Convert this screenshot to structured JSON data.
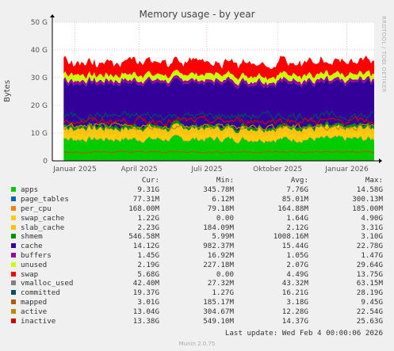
{
  "title": "Memory usage - by year",
  "side_label": "RRDTOOL / TOBI OETIKER",
  "footer": "Munin 2.0.75",
  "last_update": "Last update: Wed Feb  4 00:00:06 2026",
  "legend_headers": {
    "cur": "Cur:",
    "min": "Min:",
    "avg": "Avg:",
    "max": "Max:"
  },
  "chart_data": {
    "type": "area",
    "title": "Memory usage - by year",
    "ylabel": "Bytes",
    "xlabel": "",
    "ylim": [
      0,
      50
    ],
    "y_unit": "G",
    "y_ticks": [
      "0",
      "10 G",
      "20 G",
      "30 G",
      "40 G",
      "50 G"
    ],
    "x_ticks": [
      "Januar 2025",
      "April 2025",
      "Juli 2025",
      "Oktober 2025",
      "Januar 2026"
    ],
    "grid": true,
    "series": [
      {
        "name": "apps",
        "color": "#00cc00",
        "cur": "9.31G",
        "min": "345.78M",
        "avg": "7.76G",
        "max": "14.58G"
      },
      {
        "name": "page_tables",
        "color": "#0066b3",
        "cur": "77.31M",
        "min": "6.12M",
        "avg": "85.01M",
        "max": "300.13M"
      },
      {
        "name": "per_cpu",
        "color": "#ff8000",
        "cur": "168.00M",
        "min": "79.18M",
        "avg": "164.88M",
        "max": "185.00M"
      },
      {
        "name": "swap_cache",
        "color": "#ffcc00",
        "cur": "1.22G",
        "min": "0.00",
        "avg": "1.64G",
        "max": "4.90G"
      },
      {
        "name": "slab_cache",
        "color": "#ffc20e",
        "cur": "2.23G",
        "min": "184.09M",
        "avg": "2.12G",
        "max": "3.31G"
      },
      {
        "name": "shmem",
        "color": "#008f00",
        "cur": "546.58M",
        "min": "5.99M",
        "avg": "1008.16M",
        "max": "3.10G"
      },
      {
        "name": "cache",
        "color": "#330099",
        "cur": "14.12G",
        "min": "982.37M",
        "avg": "15.44G",
        "max": "22.78G"
      },
      {
        "name": "buffers",
        "color": "#990099",
        "cur": "1.45G",
        "min": "16.92M",
        "avg": "1.05G",
        "max": "1.47G"
      },
      {
        "name": "unused",
        "color": "#ccff00",
        "cur": "2.19G",
        "min": "227.18M",
        "avg": "2.07G",
        "max": "29.64G"
      },
      {
        "name": "swap",
        "color": "#ff0000",
        "cur": "5.68G",
        "min": "0.00",
        "avg": "4.49G",
        "max": "13.75G"
      },
      {
        "name": "vmalloc_used",
        "color": "#808080",
        "cur": "42.40M",
        "min": "27.32M",
        "avg": "43.32M",
        "max": "63.15M"
      },
      {
        "name": "committed",
        "color": "#004d66",
        "cur": "19.37G",
        "min": "1.27G",
        "avg": "16.21G",
        "max": "28.19G"
      },
      {
        "name": "mapped",
        "color": "#b35a00",
        "cur": "3.01G",
        "min": "185.17M",
        "avg": "3.18G",
        "max": "9.45G"
      },
      {
        "name": "active",
        "color": "#b38f00",
        "cur": "13.04G",
        "min": "304.67M",
        "avg": "12.28G",
        "max": "22.54G"
      },
      {
        "name": "inactive",
        "color": "#cc0000",
        "cur": "13.38G",
        "min": "549.10M",
        "avg": "14.37G",
        "max": "25.63G"
      }
    ]
  }
}
